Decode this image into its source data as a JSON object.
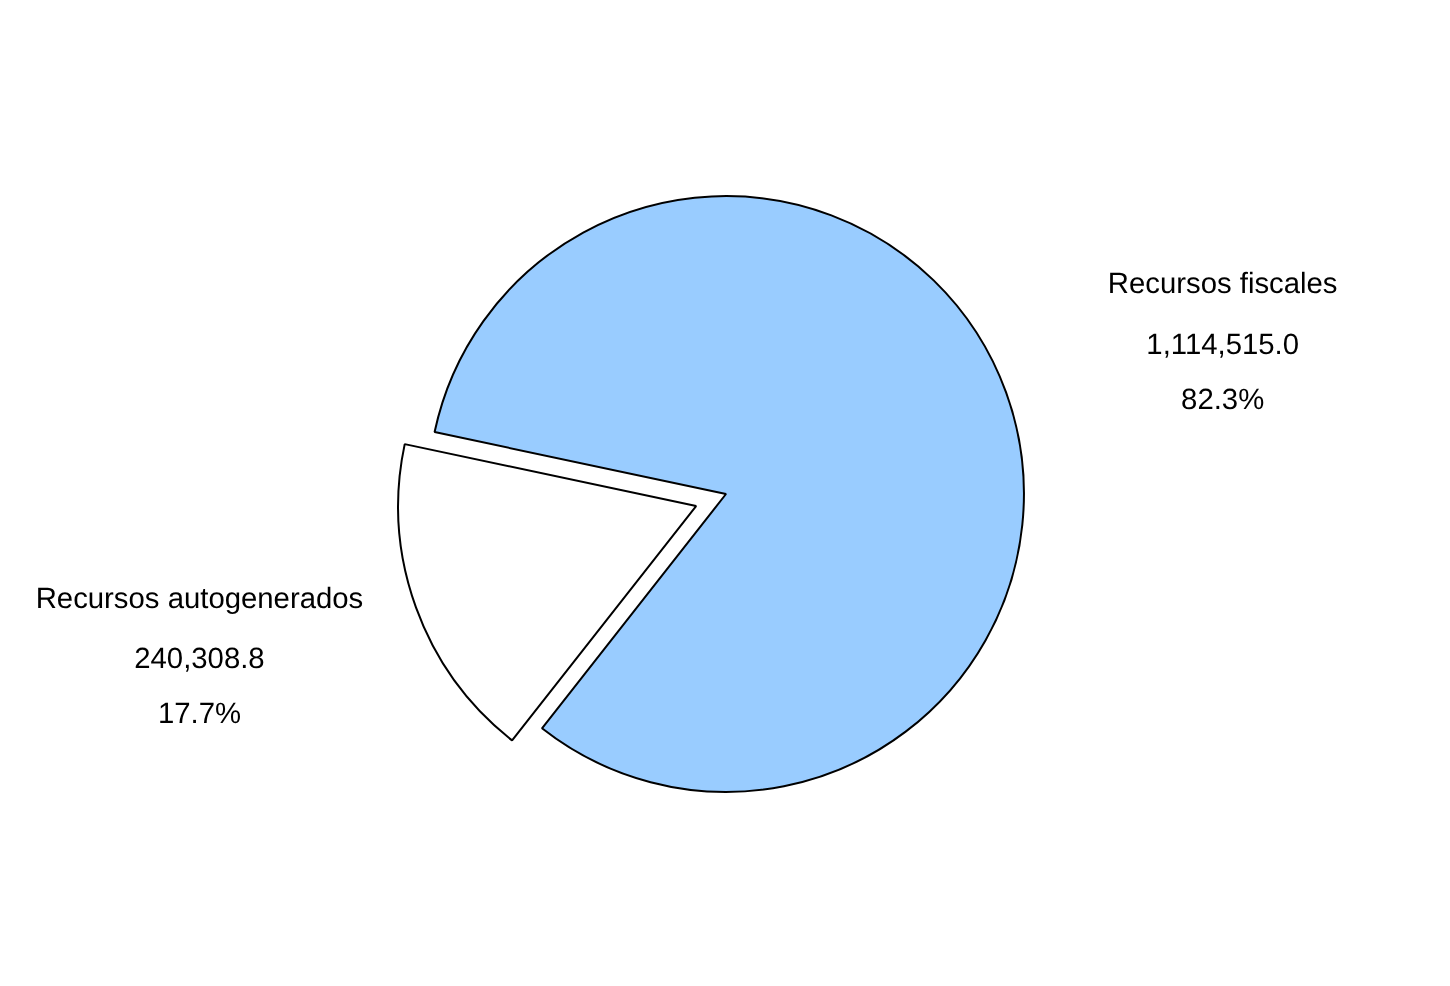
{
  "chart_data": {
    "type": "pie",
    "categories": [
      "Recursos fiscales",
      "Recursos autogenerados"
    ],
    "values": [
      1114515.0,
      240308.8
    ],
    "colors": [
      "#99ccff",
      "#ffffff"
    ],
    "value_labels": [
      "1,114,515.0\n82.3%",
      "240,308.8\n17.7%"
    ]
  }
}
